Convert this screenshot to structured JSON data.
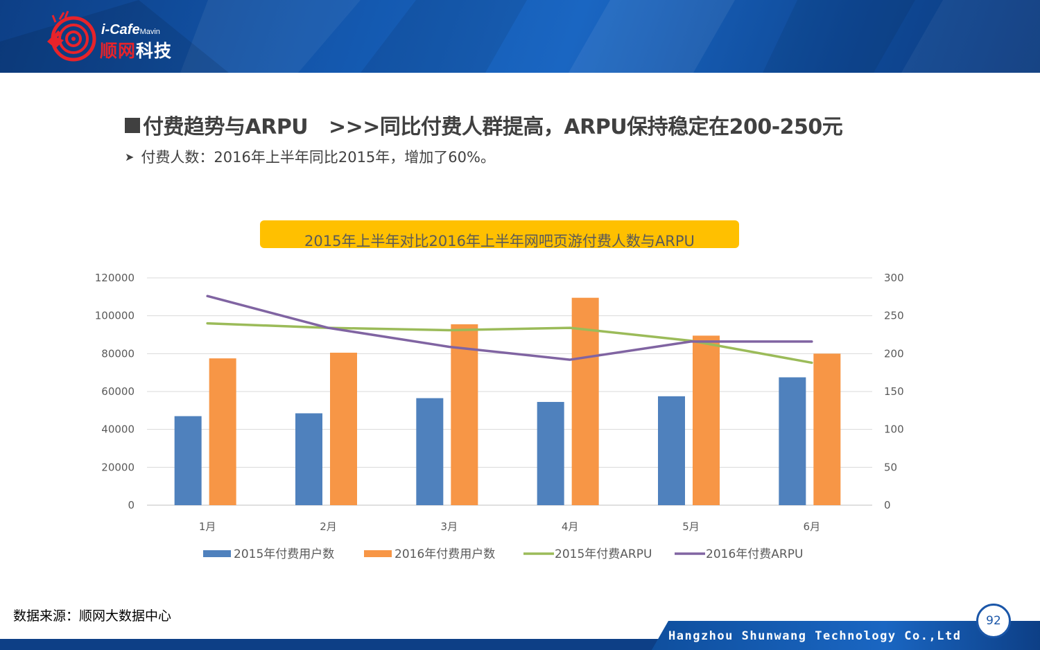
{
  "header": {
    "brand_top": "i-Cafe",
    "brand_top_small": "Mavin",
    "brand_cn_red": "顺网",
    "brand_cn_white": "科技",
    "logo_icon": "target-hand-icon"
  },
  "slide": {
    "title": "付费趋势与ARPU   >>>同比付费人群提高，ARPU保持稳定在200-250元",
    "subtitle": "付费人数：2016年上半年同比2015年，增加了60%。",
    "source": "数据来源：顺网大数据中心",
    "footer_company": "Hangzhou Shunwang Technology Co.,Ltd",
    "page_number": "92"
  },
  "colors": {
    "bar_2015": "#4f81bd",
    "bar_2016": "#f79646",
    "line_2015": "#9bbb59",
    "line_2016": "#8064a2",
    "banner": "#ffc000",
    "header_blue": "#1459b0"
  },
  "chart_data": {
    "type": "bar",
    "title": "2015年上半年对比2016年上半年网吧页游付费人数与ARPU",
    "categories": [
      "1月",
      "2月",
      "3月",
      "4月",
      "5月",
      "6月"
    ],
    "series": [
      {
        "name": "2015年付费用户数",
        "type": "bar",
        "axis": "left",
        "values": [
          47000,
          48500,
          56500,
          54500,
          57500,
          67500
        ]
      },
      {
        "name": "2016年付费用户数",
        "type": "bar",
        "axis": "left",
        "values": [
          77500,
          80500,
          95500,
          109500,
          89500,
          80000
        ]
      },
      {
        "name": "2015年付费ARPU",
        "type": "line",
        "axis": "right",
        "values": [
          240,
          234,
          231,
          234,
          217,
          188
        ]
      },
      {
        "name": "2016年付费ARPU",
        "type": "line",
        "axis": "right",
        "values": [
          276,
          234,
          209,
          192,
          216,
          216
        ]
      }
    ],
    "left_ticks": [
      "0",
      "20000",
      "40000",
      "60000",
      "80000",
      "100000",
      "120000"
    ],
    "right_ticks": [
      "0",
      "50",
      "100",
      "150",
      "200",
      "250",
      "300"
    ],
    "ylim_left": [
      0,
      120000
    ],
    "ylim_right": [
      0,
      300
    ],
    "grid": true,
    "legend_position": "bottom"
  }
}
